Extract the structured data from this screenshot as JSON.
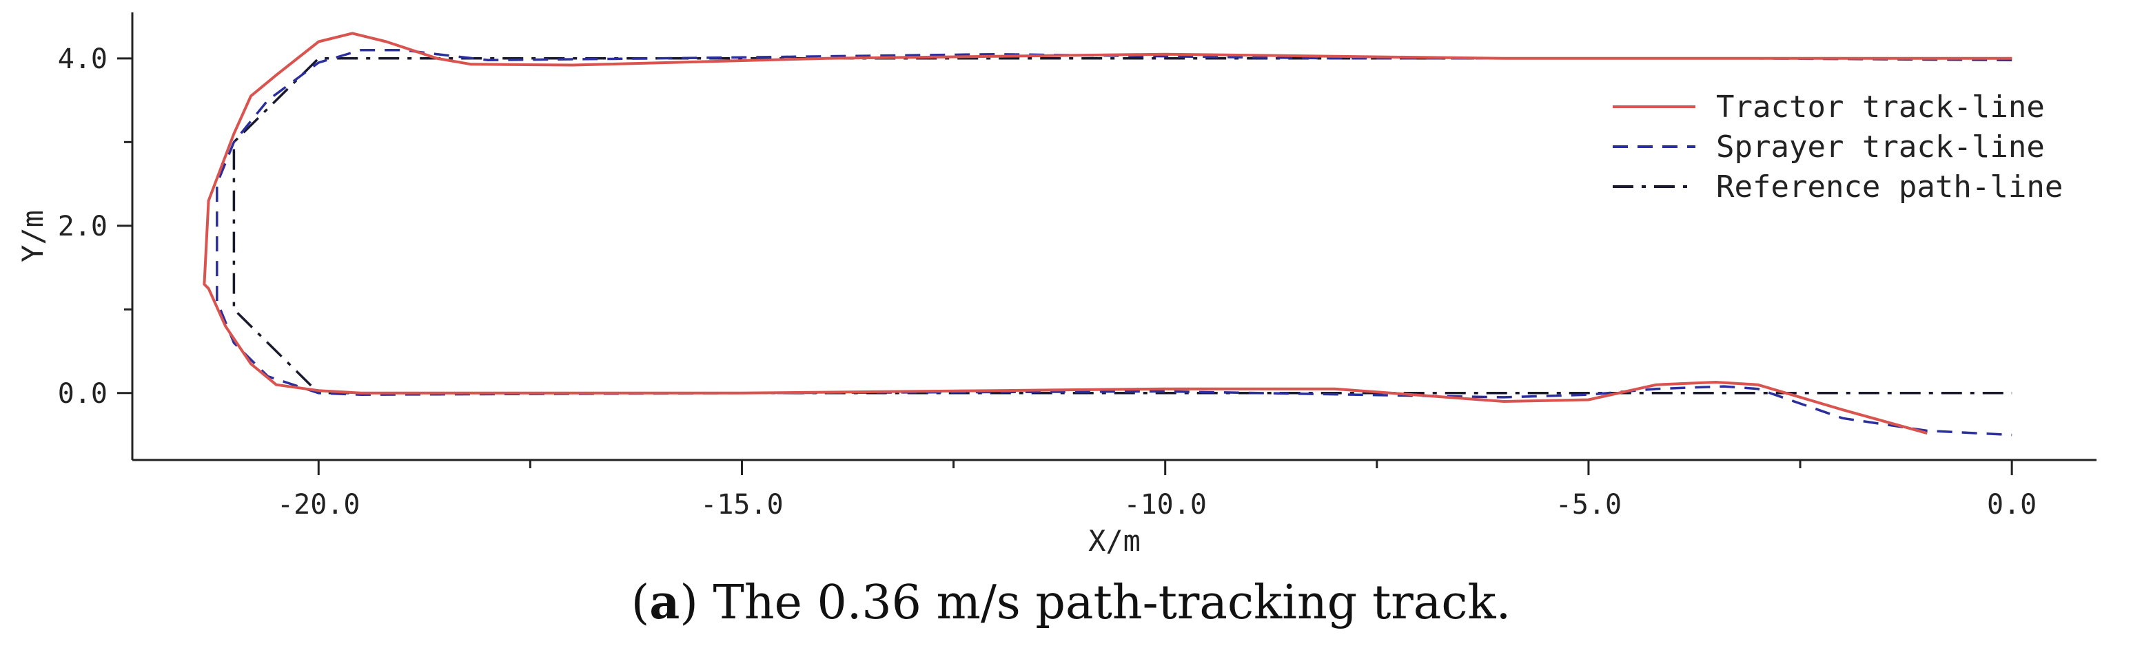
{
  "chart_data": {
    "type": "line",
    "xlabel": "X/m",
    "ylabel": "Y/m",
    "xlim": [
      -22.2,
      1.0
    ],
    "ylim": [
      -0.8,
      4.55
    ],
    "xticks": [
      -20.0,
      -15.0,
      -10.0,
      -5.0,
      0.0
    ],
    "xtick_labels": [
      "-20.0",
      "-15.0",
      "-10.0",
      "-5.0",
      "0.0"
    ],
    "yticks": [
      0.0,
      2.0,
      4.0
    ],
    "ytick_labels": [
      "0.0",
      "2.0",
      "4.0"
    ],
    "legend_position": "right",
    "grid": false,
    "series": [
      {
        "name": "Tractor track-line",
        "style": "solid",
        "color": "#d9534f",
        "x": [
          0.0,
          -1.0,
          -3.0,
          -6.0,
          -10.0,
          -14.0,
          -17.0,
          -18.2,
          -18.6,
          -19.2,
          -19.6,
          -20.0,
          -20.5,
          -20.8,
          -21.0,
          -21.3,
          -21.35,
          -21.3,
          -21.1,
          -20.8,
          -20.5,
          -20.0,
          -19.5,
          -15.0,
          -12.0,
          -10.0,
          -8.0,
          -6.0,
          -5.0,
          -4.2,
          -3.5,
          -3.0,
          -2.0,
          -1.0
        ],
        "y": [
          4.0,
          4.0,
          4.0,
          4.0,
          4.05,
          4.0,
          3.92,
          3.93,
          4.0,
          4.2,
          4.3,
          4.2,
          3.8,
          3.55,
          3.1,
          2.3,
          1.3,
          1.25,
          0.8,
          0.35,
          0.1,
          0.03,
          0.0,
          0.0,
          0.03,
          0.05,
          0.05,
          -0.1,
          -0.08,
          0.1,
          0.13,
          0.1,
          -0.2,
          -0.48
        ]
      },
      {
        "name": "Sprayer track-line",
        "style": "dashed",
        "color": "#2b2f9e",
        "x": [
          0.0,
          -3.0,
          -8.0,
          -12.0,
          -16.0,
          -18.0,
          -18.6,
          -19.0,
          -19.5,
          -20.0,
          -20.6,
          -21.0,
          -21.2,
          -21.2,
          -21.0,
          -20.6,
          -20.0,
          -19.5,
          -15.0,
          -10.0,
          -6.0,
          -5.0,
          -4.2,
          -3.4,
          -3.0,
          -2.0,
          -1.0,
          0.0
        ],
        "y": [
          3.98,
          4.0,
          4.0,
          4.05,
          4.0,
          3.98,
          4.05,
          4.1,
          4.1,
          3.95,
          3.5,
          3.0,
          2.5,
          1.1,
          0.6,
          0.2,
          0.0,
          -0.02,
          0.0,
          0.02,
          -0.05,
          -0.02,
          0.05,
          0.08,
          0.05,
          -0.3,
          -0.45,
          -0.5
        ]
      },
      {
        "name": "Reference path-line",
        "style": "dashdot",
        "color": "#1a1a2e",
        "x": [
          0.0,
          -18.0,
          -20.0,
          -21.0,
          -21.0,
          -20.0,
          0.0
        ],
        "y": [
          4.0,
          4.0,
          4.0,
          3.0,
          1.0,
          0.0,
          0.0
        ]
      }
    ]
  },
  "caption": {
    "label": "a",
    "text": "The 0.36 m/s path-tracking track."
  }
}
